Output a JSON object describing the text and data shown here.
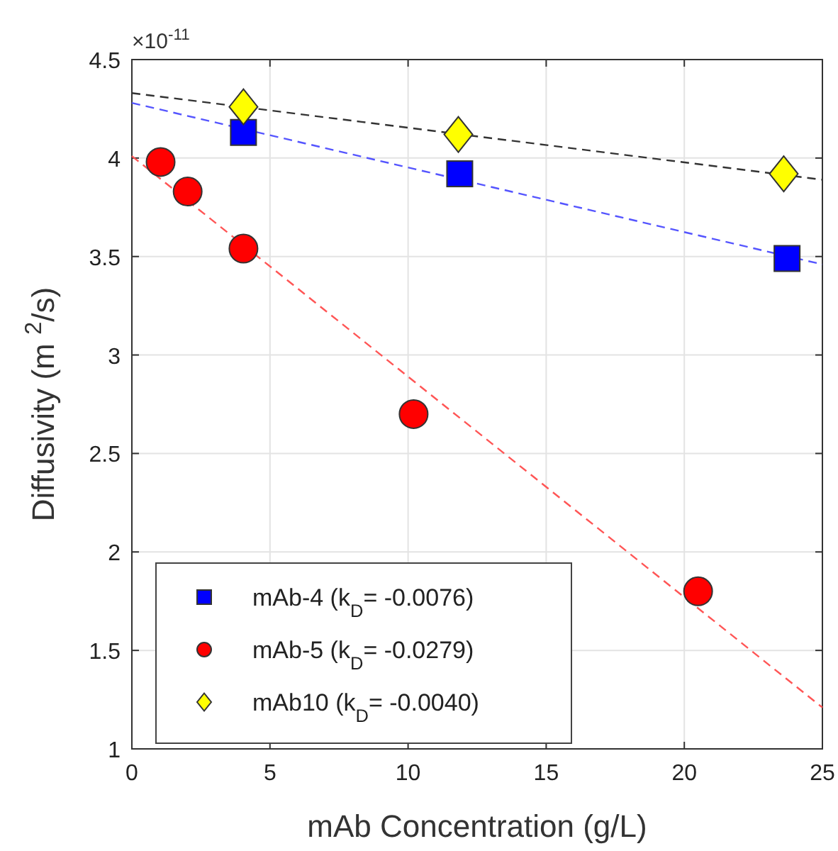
{
  "chart_data": {
    "type": "scatter",
    "xlabel": "mAb Concentration (g/L)",
    "ylabel": "Diffusivity  (m $^{2}$/s)",
    "annotations": [
      "×10$^{-11}$"
    ],
    "xlim": [
      0,
      25
    ],
    "xticks": [
      0,
      5,
      10,
      15,
      20,
      25
    ],
    "ylim": [
      1,
      4.5
    ],
    "yticks": [
      1,
      1.5,
      2,
      2.5,
      3,
      3.5,
      4,
      4.5
    ],
    "grid": true,
    "legend": "bottom left",
    "series": [
      {
        "type": "line",
        "color": "#5555ff",
        "line_style": "dashed",
        "marker": "none",
        "x": [
          0,
          25
        ],
        "values": [
          4.28,
          3.46
        ]
      },
      {
        "type": "line",
        "color": "#ff5555",
        "line_style": "dashed",
        "marker": "none",
        "x": [
          0,
          25
        ],
        "values": [
          4.01,
          1.21
        ]
      },
      {
        "type": "line",
        "color": "#333333",
        "line_style": "dashed",
        "marker": "none",
        "x": [
          0,
          25
        ],
        "values": [
          4.33,
          3.89
        ]
      },
      {
        "name": "mAb-4 (k$_{D}$= -0.0076)",
        "color": "#0000ff",
        "marker": "square",
        "x": [
          4.04,
          11.87,
          23.72
        ],
        "values": [
          4.13,
          3.92,
          3.49
        ]
      },
      {
        "name": "mAb-5 (k$_{D}$= -0.0279)",
        "color": "#ff0000",
        "marker": "circle",
        "x": [
          1.04,
          2.02,
          4.04,
          10.2,
          20.5
        ],
        "values": [
          3.98,
          3.83,
          3.54,
          2.7,
          1.8
        ]
      },
      {
        "name": "mAb10 (k$_{D}$= -0.0040)",
        "color": "#ffff00",
        "marker": "diamond",
        "x": [
          4.04,
          11.82,
          23.6
        ],
        "values": [
          4.26,
          4.12,
          3.92
        ]
      }
    ]
  }
}
